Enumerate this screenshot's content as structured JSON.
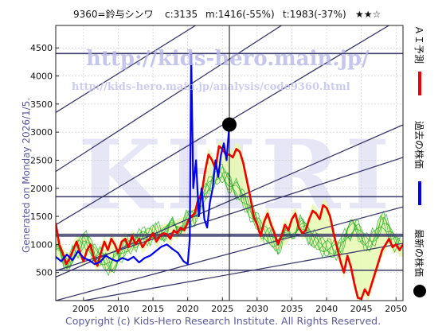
{
  "header": {
    "code_name": "9360=鈴与シンワ",
    "current": "c:3135",
    "min": "m:1416(-55%)",
    "target": "t:1983(-37%)",
    "rating": "★★☆"
  },
  "watermark": {
    "url_main": "http://kids-hero.main.jp/",
    "url_sub": "http://kids-hero.main.jp/analysis/code9360.html",
    "logo": "KHRI"
  },
  "generated": "Generated on Monday 2026/1/5.",
  "copyright": "Copyright (c) Kids-Hero Research Institute. All Rights Reserved.",
  "legend": {
    "ai": "ＡＩ予測",
    "past": "過去の株価",
    "latest": "最新の株価"
  },
  "colors": {
    "past": "#0000ee",
    "ai": "#ee0000",
    "band": "#22aa22",
    "channel": "#3a3a6a",
    "latest": "#000000"
  },
  "chart_data": {
    "type": "line",
    "xlim": [
      2001,
      2051
    ],
    "ylim": [
      0,
      4900
    ],
    "x_ticks": [
      2005,
      2010,
      2015,
      2020,
      2025,
      2030,
      2035,
      2040,
      2045,
      2050
    ],
    "y_ticks": [
      500,
      1000,
      1500,
      2000,
      2500,
      3000,
      3500,
      4000,
      4500
    ],
    "hlines": [
      4400,
      1850,
      1180,
      1150,
      540
    ],
    "vline": 2026,
    "latest_point": {
      "x": 2026,
      "y": 3135
    },
    "channel_lines": [
      {
        "x": [
          2001,
          2051
        ],
        "y": [
          3350,
          7200
        ]
      },
      {
        "x": [
          2001,
          2051
        ],
        "y": [
          2300,
          6300
        ]
      },
      {
        "x": [
          2001,
          2051
        ],
        "y": [
          1350,
          5050
        ]
      },
      {
        "x": [
          2001,
          2051
        ],
        "y": [
          420,
          3130
        ]
      },
      {
        "x": [
          2001,
          2051
        ],
        "y": [
          530,
          2550
        ]
      },
      {
        "x": [
          2001,
          2051
        ],
        "y": [
          0,
          1670
        ]
      },
      {
        "x": [
          2005,
          2051
        ],
        "y": [
          0,
          1020
        ]
      }
    ],
    "series": [
      {
        "key": "past",
        "x": [
          2001.0,
          2001.8,
          2002.6,
          2003.4,
          2004.2,
          2005.0,
          2005.8,
          2006.6,
          2007.4,
          2008.2,
          2009.0,
          2009.8,
          2010.6,
          2011.4,
          2012.2,
          2013.0,
          2013.8,
          2014.6,
          2015.4,
          2016.2,
          2017.0,
          2017.8,
          2018.6,
          2019.4,
          2020.0,
          2020.3,
          2020.5,
          2020.8,
          2021.2,
          2021.6,
          2022.0,
          2022.4,
          2022.8,
          2023.2,
          2023.6,
          2024.0,
          2024.4,
          2024.8,
          2025.2,
          2025.6,
          2026.0
        ],
        "y": [
          780,
          700,
          820,
          720,
          880,
          760,
          720,
          650,
          690,
          800,
          740,
          700,
          760,
          720,
          780,
          680,
          760,
          800,
          880,
          960,
          1000,
          920,
          850,
          700,
          650,
          1100,
          4400,
          2000,
          2500,
          1500,
          2000,
          1450,
          1300,
          1750,
          2000,
          2500,
          2200,
          2600,
          2800,
          2500,
          3135
        ]
      },
      {
        "key": "ai",
        "x": [
          2001.0,
          2001.5,
          2002.0,
          2002.5,
          2003.0,
          2003.5,
          2004.0,
          2004.5,
          2005.0,
          2005.5,
          2006.0,
          2006.5,
          2007.0,
          2007.5,
          2008.0,
          2008.5,
          2009.0,
          2009.5,
          2010.0,
          2010.5,
          2011.0,
          2011.5,
          2012.0,
          2012.5,
          2013.0,
          2013.5,
          2014.0,
          2014.5,
          2015.0,
          2015.5,
          2016.0,
          2016.5,
          2017.0,
          2017.5,
          2018.0,
          2018.5,
          2019.0,
          2019.5,
          2020.0,
          2020.5,
          2021.0,
          2021.5,
          2022.0,
          2022.5,
          2023.0,
          2023.5,
          2024.0,
          2024.5,
          2025.0,
          2025.5,
          2026.0,
          2026.5,
          2027.0,
          2027.5,
          2028.0,
          2028.5,
          2029.0,
          2029.5,
          2030.0,
          2030.5,
          2031.0,
          2031.5,
          2032.0,
          2032.5,
          2033.0,
          2033.5,
          2034.0,
          2034.5,
          2035.0,
          2035.5,
          2036.0,
          2036.5,
          2037.0,
          2037.5,
          2038.0,
          2038.5,
          2039.0,
          2039.5,
          2040.0,
          2040.5,
          2041.0,
          2041.5,
          2042.0,
          2042.5,
          2043.0,
          2043.5,
          2044.0,
          2044.5,
          2045.0,
          2045.5,
          2046.0,
          2046.5,
          2047.0,
          2047.5,
          2048.0,
          2048.5,
          2049.0,
          2049.5,
          2050.0,
          2050.5,
          2051.0
        ],
        "y": [
          1380,
          1000,
          850,
          650,
          750,
          900,
          1050,
          850,
          700,
          900,
          1000,
          750,
          620,
          850,
          1050,
          900,
          1100,
          1000,
          850,
          1050,
          1100,
          950,
          1150,
          1000,
          1100,
          950,
          1050,
          1100,
          1200,
          1050,
          1150,
          1200,
          1180,
          1100,
          1250,
          1200,
          1300,
          1250,
          1400,
          1500,
          1550,
          1800,
          1900,
          2300,
          2600,
          2500,
          2350,
          2750,
          2700,
          2600,
          2600,
          2550,
          2700,
          2650,
          2450,
          2150,
          1850,
          1500,
          1350,
          1150,
          1400,
          1550,
          1350,
          1200,
          1000,
          1150,
          1350,
          1250,
          1450,
          1550,
          1300,
          1200,
          1250,
          1450,
          1600,
          1550,
          1450,
          1700,
          1650,
          1500,
          1200,
          950,
          700,
          500,
          800,
          600,
          300,
          50,
          30,
          200,
          100,
          300,
          500,
          700,
          900,
          1000,
          1100,
          950,
          1000,
          900,
          1000
        ]
      },
      {
        "key": "band",
        "x": [
          2001,
          2003,
          2005,
          2007,
          2009,
          2011,
          2013,
          2015,
          2017,
          2019,
          2021,
          2023,
          2025,
          2026,
          2027,
          2028,
          2029,
          2030,
          2031,
          2032,
          2033,
          2034,
          2035,
          2036,
          2037,
          2038,
          2039,
          2040,
          2041,
          2042,
          2043,
          2044,
          2045,
          2046,
          2047,
          2048,
          2049,
          2050,
          2051
        ],
        "y": [
          850,
          700,
          1100,
          800,
          600,
          950,
          1100,
          1200,
          1250,
          1350,
          1500,
          2050,
          2300,
          2050,
          2000,
          1800,
          1600,
          1400,
          1200,
          1100,
          1000,
          1100,
          1250,
          1350,
          1250,
          1100,
          1000,
          950,
          900,
          950,
          1200,
          1350,
          1150,
          1000,
          1150,
          1450,
          1250,
          1000,
          900
        ]
      }
    ]
  }
}
